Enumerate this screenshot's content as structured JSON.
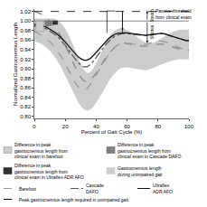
{
  "chart_data": {
    "type": "line",
    "xlabel": "Percent of Gait Cycle (%)",
    "ylabel": "Normalized Gastrocnemius Length",
    "xlim": [
      0,
      100
    ],
    "ylim": [
      0.795,
      1.025
    ],
    "xticks": [
      0,
      20,
      40,
      60,
      80,
      100
    ],
    "yticks": [
      {
        "value": 0.8,
        "label": "0.80"
      },
      0.82,
      0.84,
      0.86,
      0.88,
      {
        "value": 0.9,
        "label": "0.90"
      },
      0.92,
      0.94,
      0.96,
      0.98,
      {
        "value": 1,
        "label": "1.00"
      },
      1.02
    ],
    "grid": false,
    "x": [
      0,
      2,
      4,
      6,
      8,
      10,
      12,
      14,
      16,
      18,
      20,
      22,
      24,
      26,
      28,
      30,
      32,
      34,
      36,
      38,
      40,
      42,
      44,
      46,
      48,
      50,
      52,
      54,
      56,
      58,
      60,
      62,
      64,
      66,
      68,
      70,
      72,
      74,
      76,
      78,
      80,
      82,
      84,
      86,
      88,
      90,
      92,
      94,
      96,
      98,
      100
    ],
    "band": {
      "name": "Gastrocnemius length\nduring unimpaired gait",
      "color": "#cccccc",
      "lower": [
        0.958,
        0.956,
        0.953,
        0.949,
        0.944,
        0.938,
        0.93,
        0.921,
        0.911,
        0.899,
        0.886,
        0.872,
        0.858,
        0.844,
        0.832,
        0.822,
        0.815,
        0.812,
        0.814,
        0.82,
        0.829,
        0.839,
        0.85,
        0.862,
        0.873,
        0.883,
        0.891,
        0.897,
        0.901,
        0.903,
        0.903,
        0.902,
        0.901,
        0.899,
        0.898,
        0.897,
        0.897,
        0.898,
        0.9,
        0.903,
        0.906,
        0.909,
        0.912,
        0.914,
        0.916,
        0.918,
        0.919,
        0.92,
        0.92,
        0.92,
        0.92
      ],
      "upper": [
        1.005,
        1.005,
        1.005,
        1.005,
        1.005,
        1.005,
        1.005,
        1.003,
        0.999,
        0.993,
        0.984,
        0.972,
        0.958,
        0.942,
        0.926,
        0.91,
        0.898,
        0.891,
        0.892,
        0.9,
        0.912,
        0.926,
        0.94,
        0.954,
        0.965,
        0.974,
        0.98,
        0.984,
        0.985,
        0.984,
        0.981,
        0.977,
        0.972,
        0.967,
        0.962,
        0.958,
        0.955,
        0.954,
        0.954,
        0.956,
        0.959,
        0.963,
        0.967,
        0.971,
        0.975,
        0.978,
        0.98,
        0.982,
        0.982,
        0.982,
        0.982
      ]
    },
    "series": [
      {
        "color": "#888888",
        "line_style": "dashed",
        "values": [
          1.02,
          1.018,
          1.015,
          1.011,
          1.006,
          1.0,
          0.993,
          0.985,
          0.975,
          0.963,
          0.95,
          0.936,
          0.921,
          0.906,
          0.893,
          0.882,
          0.875,
          0.872,
          0.875,
          0.882,
          0.891,
          0.901,
          0.912,
          0.922,
          0.931,
          0.939,
          0.945,
          0.95,
          0.953,
          0.954,
          0.953,
          0.952,
          0.95,
          0.948,
          0.947,
          0.947,
          0.947,
          0.948,
          0.95,
          0.951,
          0.952,
          0.952,
          0.951,
          0.949,
          0.947,
          0.944,
          0.942,
          0.94,
          0.939,
          0.938,
          0.938
        ]
      },
      {
        "name": "Barefoot",
        "color": "#999999",
        "line_style": "dashed",
        "values": [
          0.978,
          0.975,
          0.972,
          0.968,
          0.963,
          0.957,
          0.95,
          0.942,
          0.933,
          0.922,
          0.91,
          0.897,
          0.884,
          0.873,
          0.864,
          0.857,
          0.855,
          0.858,
          0.866,
          0.877,
          0.887,
          0.897,
          0.908,
          0.919,
          0.929,
          0.938,
          0.945,
          0.95,
          0.953,
          0.954,
          0.954,
          0.953,
          0.952,
          0.951,
          0.95,
          0.95,
          0.951,
          0.953,
          0.955,
          0.957,
          0.958,
          0.958,
          0.957,
          0.955,
          0.952,
          0.949,
          0.946,
          0.943,
          0.941,
          0.94,
          0.94
        ]
      },
      {
        "name": "Cascade\nDAFO",
        "color": "#555555",
        "line_style": "dashdot",
        "values": [
          0.99,
          0.989,
          0.988,
          0.986,
          0.983,
          0.979,
          0.975,
          0.97,
          0.964,
          0.957,
          0.949,
          0.94,
          0.931,
          0.922,
          0.914,
          0.908,
          0.904,
          0.904,
          0.908,
          0.915,
          0.923,
          0.932,
          0.941,
          0.95,
          0.957,
          0.963,
          0.968,
          0.971,
          0.973,
          0.974,
          0.974,
          0.973,
          0.972,
          0.971,
          0.97,
          0.97,
          0.97,
          0.971,
          0.972,
          0.973,
          0.974,
          0.974,
          0.973,
          0.971,
          0.969,
          0.967,
          0.964,
          0.962,
          0.96,
          0.959,
          0.959
        ]
      },
      {
        "name": "Ultraflex\nADR AFO",
        "color": "#111111",
        "line_style": "solid",
        "values": [
          0.993,
          0.992,
          0.991,
          0.989,
          0.987,
          0.983,
          0.979,
          0.975,
          0.969,
          0.963,
          0.956,
          0.948,
          0.94,
          0.933,
          0.926,
          0.921,
          0.918,
          0.918,
          0.921,
          0.927,
          0.934,
          0.942,
          0.95,
          0.957,
          0.963,
          0.968,
          0.972,
          0.974,
          0.975,
          0.975,
          0.975,
          0.974,
          0.973,
          0.972,
          0.971,
          0.97,
          0.97,
          0.971,
          0.972,
          0.973,
          0.974,
          0.974,
          0.973,
          0.971,
          0.969,
          0.967,
          0.964,
          0.962,
          0.96,
          0.959,
          0.959
        ]
      }
    ],
    "hlines": [
      {
        "y": 1.0,
        "color": "#666666",
        "line_style": "solid"
      },
      {
        "y": 1.02,
        "color": "#000000",
        "line_style": "dashed",
        "name": "Peak gastrocnemius length required in unimpaired gait"
      }
    ],
    "rects": [
      {
        "name": "Difference in peak\ngastrocnemius length from\nclinical exam in barefoot",
        "x": [
          1,
          6
        ],
        "y": [
          0.978,
          1.0
        ],
        "color": "#cccccc",
        "edge_color": "#888888"
      },
      {
        "name": "Difference in peak\ngastrocnemius length from\nclinical exam in Cascade DAFO",
        "x": [
          7,
          11
        ],
        "y": [
          0.99,
          1.0
        ],
        "color": "#808080",
        "edge_color": "#555555"
      },
      {
        "name": "Difference in peak\ngastrocnemius length from\nclinical exam in Ultraflex ADR AFO",
        "x": [
          12,
          15
        ],
        "y": [
          0.993,
          1.0
        ],
        "color": "#333333",
        "edge_color": "#111111"
      }
    ],
    "bracket": {
      "x": [
        47,
        57
      ],
      "top": 1.021,
      "bottom": 0.975,
      "arrow_to": 0.98
    },
    "arrows": [
      {
        "x": 73,
        "from": 1.0,
        "to": 1.021
      },
      {
        "x": 73,
        "from": 1.0,
        "to": 0.954
      }
    ],
    "vertical_labels": [
      {
        "text": "Stretch",
        "x": 74,
        "y": 1.011
      },
      {
        "text": "Shorten",
        "x": 74,
        "y": 0.977
      }
    ],
    "annotations": [
      {
        "text": "Passive threshold\nfrom clinical exam",
        "x": 78,
        "y": 1.001
      }
    ]
  }
}
